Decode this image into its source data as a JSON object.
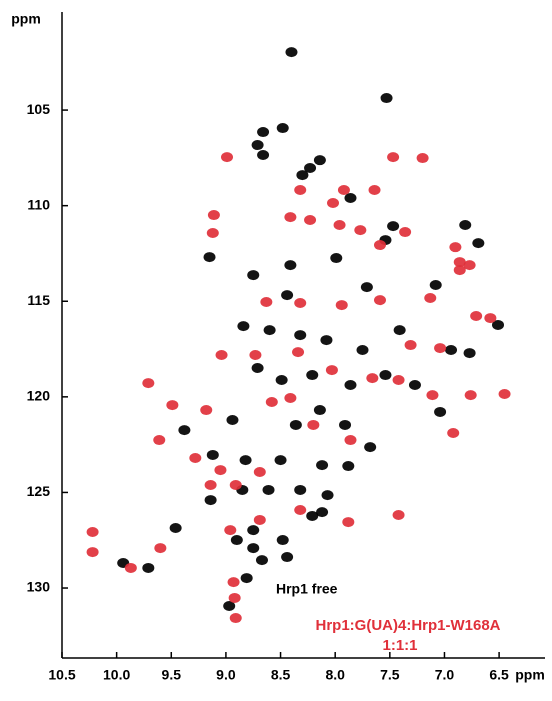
{
  "chart_data": {
    "type": "scatter",
    "x_label": "ppm",
    "y_label": "ppm",
    "xlim": [
      10.5,
      6.08
    ],
    "ylim": [
      133.66,
      99.87
    ],
    "xticks": [
      10.5,
      {
        "value": 10,
        "label": "10.0"
      },
      9.5,
      {
        "value": 9,
        "label": "9.0"
      },
      8.5,
      {
        "value": 8,
        "label": "8.0"
      },
      7.5,
      {
        "value": 7,
        "label": "7.0"
      },
      6.5
    ],
    "yticks": [
      105,
      110,
      115,
      120,
      125,
      130
    ],
    "legend_note": "1:1:1",
    "series": [
      {
        "name": "Hrp1 free",
        "color": "#000000",
        "x": [
          8.4,
          7.53,
          8.66,
          8.48,
          8.71,
          8.66,
          8.14,
          8.3,
          8.23,
          7.86,
          7.47,
          7.54,
          6.81,
          6.69,
          9.15,
          8.41,
          7.99,
          8.75,
          8.44,
          7.71,
          7.08,
          6.51,
          8.84,
          8.6,
          8.32,
          8.08,
          7.75,
          7.41,
          6.94,
          6.77,
          8.71,
          8.49,
          8.21,
          7.86,
          7.54,
          7.27,
          7.04,
          9.38,
          8.94,
          8.36,
          8.14,
          7.91,
          7.68,
          9.12,
          8.82,
          8.5,
          8.12,
          7.88,
          8.85,
          8.61,
          8.32,
          8.07,
          9.14,
          8.75,
          8.48,
          8.21,
          8.12,
          9.46,
          8.9,
          8.75,
          9.94,
          9.71,
          8.44,
          8.67,
          8.81,
          8.97
        ],
        "values": [
          101.97,
          104.37,
          106.15,
          105.94,
          106.83,
          107.35,
          107.62,
          108.4,
          108.03,
          109.6,
          111.07,
          111.8,
          111.01,
          111.96,
          112.69,
          113.11,
          112.74,
          113.63,
          114.68,
          114.26,
          114.15,
          116.24,
          116.3,
          116.51,
          116.77,
          117.03,
          117.55,
          116.51,
          117.55,
          117.71,
          118.49,
          119.12,
          118.86,
          119.38,
          118.86,
          119.38,
          120.79,
          121.74,
          121.21,
          121.47,
          120.69,
          121.47,
          122.63,
          123.04,
          123.31,
          123.31,
          123.57,
          123.62,
          124.87,
          124.87,
          124.87,
          125.14,
          125.4,
          126.97,
          127.49,
          126.23,
          126.03,
          126.86,
          127.49,
          127.91,
          128.69,
          128.95,
          128.38,
          128.54,
          129.48,
          130.94
        ]
      },
      {
        "name": "Hrp1:G(UA)4:Hrp1-W168A",
        "color": "#e0303a",
        "x": [
          8.99,
          7.47,
          7.2,
          7.64,
          7.92,
          8.32,
          8.02,
          9.11,
          8.41,
          8.23,
          7.96,
          7.77,
          7.59,
          7.36,
          6.9,
          9.12,
          6.86,
          6.77,
          8.63,
          8.32,
          7.94,
          7.59,
          7.13,
          6.86,
          6.71,
          6.58,
          7.31,
          7.04,
          8.73,
          9.04,
          8.34,
          8.03,
          7.66,
          7.42,
          7.11,
          6.76,
          6.45,
          9.71,
          9.49,
          9.18,
          8.58,
          8.2,
          8.41,
          9.61,
          9.28,
          9.05,
          8.69,
          7.86,
          6.92,
          9.6,
          9.14,
          8.91,
          8.32,
          7.88,
          7.42,
          8.96,
          8.69,
          10.22,
          10.22,
          9.87,
          8.93,
          8.92,
          8.91
        ],
        "values": [
          107.46,
          107.46,
          107.51,
          109.18,
          109.18,
          109.18,
          109.86,
          110.49,
          110.6,
          110.75,
          111.01,
          111.28,
          112.06,
          111.38,
          112.17,
          111.43,
          112.95,
          113.11,
          115.04,
          115.09,
          115.2,
          114.94,
          114.83,
          113.37,
          115.77,
          115.88,
          117.29,
          117.45,
          117.81,
          117.81,
          117.66,
          118.6,
          119.02,
          119.12,
          119.91,
          119.91,
          119.85,
          119.28,
          120.43,
          120.69,
          120.27,
          121.47,
          120.06,
          122.26,
          123.2,
          123.83,
          123.93,
          122.26,
          121.89,
          127.91,
          124.61,
          124.61,
          125.92,
          126.55,
          126.18,
          126.97,
          126.44,
          127.07,
          128.12,
          128.95,
          129.69,
          130.52,
          131.57
        ]
      }
    ]
  }
}
